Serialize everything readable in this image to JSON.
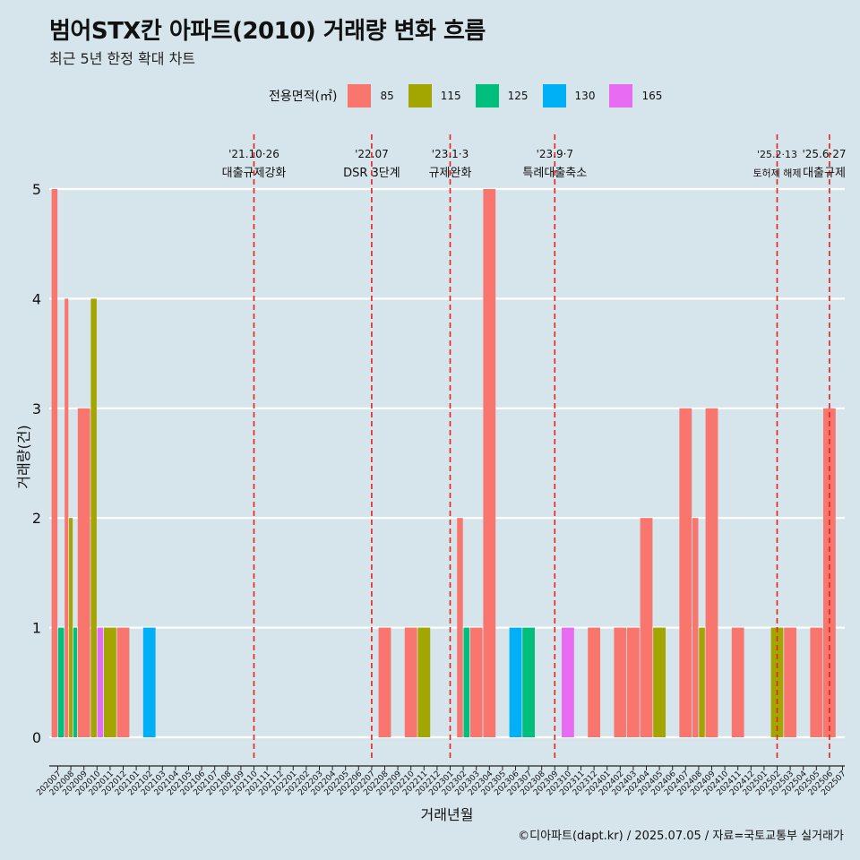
{
  "title": "범어STX칸 아파트(2010) 거래량 변화 흐름",
  "subtitle": "최근 5년 한정 확대 차트",
  "legend_title": "전용면적(㎡)",
  "caption": "©디아파트(dapt.kr) / 2025.07.05 / 자료=국토교통부 실거래가",
  "chart_data": {
    "type": "bar",
    "stacking": "dodge",
    "xlabel": "거래년월",
    "ylabel": "거래량(건)",
    "ylim": [
      0,
      5
    ],
    "yticks": [
      0,
      1,
      2,
      3,
      4,
      5
    ],
    "grid": "horizontal",
    "legend_position": "top",
    "categories": [
      "202007",
      "202008",
      "202009",
      "202010",
      "202011",
      "202012",
      "202101",
      "202102",
      "202103",
      "202104",
      "202105",
      "202106",
      "202107",
      "202108",
      "202109",
      "202110",
      "202111",
      "202112",
      "202201",
      "202202",
      "202203",
      "202204",
      "202205",
      "202206",
      "202207",
      "202208",
      "202209",
      "202210",
      "202211",
      "202212",
      "202301",
      "202302",
      "202303",
      "202304",
      "202305",
      "202306",
      "202307",
      "202308",
      "202309",
      "202310",
      "202311",
      "202312",
      "202401",
      "202402",
      "202403",
      "202404",
      "202405",
      "202406",
      "202407",
      "202408",
      "202409",
      "202410",
      "202411",
      "202412",
      "202501",
      "202502",
      "202503",
      "202504",
      "202505",
      "202506",
      "202507"
    ],
    "series": [
      {
        "name": "85",
        "color": "#f8766d",
        "points": [
          [
            "202007",
            5
          ],
          [
            "202008",
            4
          ],
          [
            "202009",
            3
          ],
          [
            "202012",
            1
          ],
          [
            "202208",
            1
          ],
          [
            "202210",
            1
          ],
          [
            "202302",
            2
          ],
          [
            "202303",
            1
          ],
          [
            "202304",
            5
          ],
          [
            "202312",
            1
          ],
          [
            "202402",
            1
          ],
          [
            "202403",
            1
          ],
          [
            "202404",
            2
          ],
          [
            "202407",
            3
          ],
          [
            "202408",
            2
          ],
          [
            "202409",
            3
          ],
          [
            "202411",
            1
          ],
          [
            "202503",
            1
          ],
          [
            "202505",
            1
          ],
          [
            "202506",
            3
          ]
        ]
      },
      {
        "name": "115",
        "color": "#a3a500",
        "points": [
          [
            "202008",
            2
          ],
          [
            "202010",
            4
          ],
          [
            "202011",
            1
          ],
          [
            "202211",
            1
          ],
          [
            "202405",
            1
          ],
          [
            "202408",
            1
          ],
          [
            "202502",
            1
          ]
        ]
      },
      {
        "name": "125",
        "color": "#00bf7d",
        "points": [
          [
            "202007",
            1
          ],
          [
            "202008",
            1
          ],
          [
            "202302",
            1
          ],
          [
            "202307",
            1
          ]
        ]
      },
      {
        "name": "130",
        "color": "#00b0f6",
        "points": [
          [
            "202102",
            1
          ],
          [
            "202306",
            1
          ]
        ]
      },
      {
        "name": "165",
        "color": "#e76bf3",
        "points": [
          [
            "202010",
            1
          ],
          [
            "202310",
            1
          ]
        ]
      }
    ],
    "annotations": [
      {
        "at": "202110",
        "date": "'21.10·26",
        "label": "대출규제강화"
      },
      {
        "at": "202207",
        "date": "'22.07",
        "label": "DSR 3단계"
      },
      {
        "at": "202301",
        "date": "'23.1·3",
        "label": "규제완화"
      },
      {
        "at": "202309",
        "date": "'23.9·7",
        "label": "특례대출축소"
      },
      {
        "at": "202502",
        "date": "'25.2·13",
        "label": "토허제 해제"
      },
      {
        "at": "202506",
        "date": "'25.6·27",
        "label": "대출규제"
      }
    ]
  }
}
